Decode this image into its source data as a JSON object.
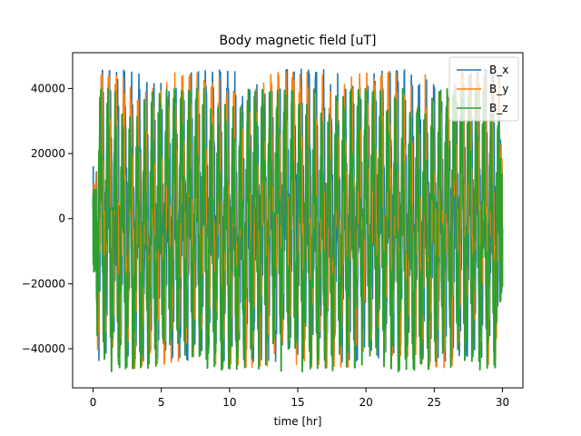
{
  "chart_data": {
    "type": "line",
    "title": "Body magnetic field [uT]",
    "xlabel": "time [hr]",
    "ylabel": "",
    "xlim": [
      -1.5,
      31.5
    ],
    "ylim": [
      -52000,
      51000
    ],
    "xticks": [
      0,
      5,
      10,
      15,
      20,
      25,
      30
    ],
    "xtick_labels": [
      "0",
      "5",
      "10",
      "15",
      "20",
      "25",
      "30"
    ],
    "yticks": [
      -40000,
      -20000,
      0,
      20000,
      40000
    ],
    "ytick_labels": [
      "−40000",
      "−20000",
      "0",
      "20000",
      "40000"
    ],
    "grid": false,
    "legend_position": "top-right",
    "series": [
      {
        "name": "B_x",
        "color": "#1f77b4",
        "amplitude_range": [
          -44000,
          46000
        ],
        "x_range": [
          0,
          30
        ]
      },
      {
        "name": "B_y",
        "color": "#ff7f0e",
        "amplitude_range": [
          -46000,
          45000
        ],
        "x_range": [
          0,
          30
        ]
      },
      {
        "name": "B_z",
        "color": "#2ca02c",
        "amplitude_range": [
          -47000,
          40000
        ],
        "x_range": [
          0,
          30
        ]
      }
    ]
  }
}
